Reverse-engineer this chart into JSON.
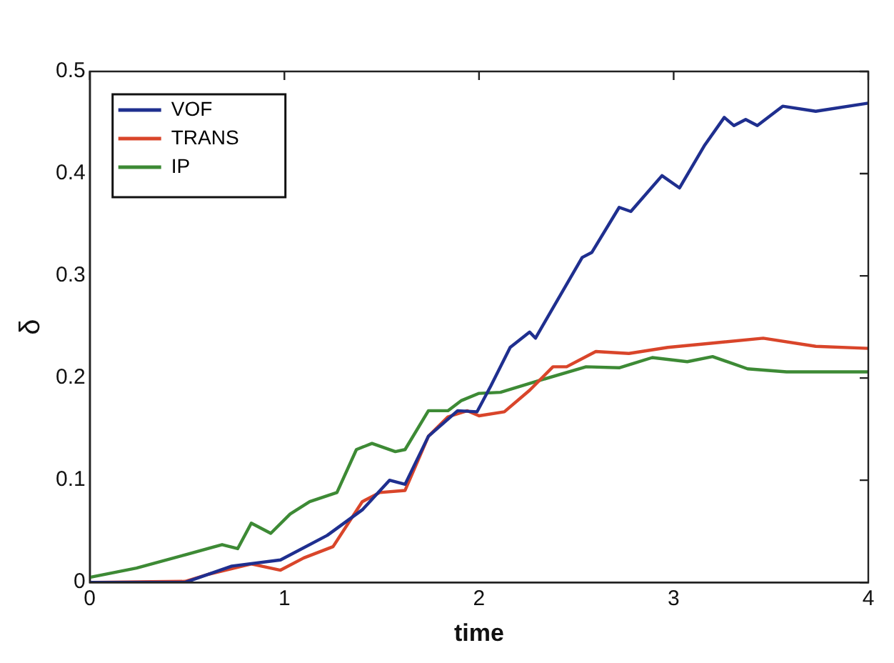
{
  "chart_data": {
    "type": "line",
    "xlabel": "time",
    "ylabel": "δ",
    "xlim": [
      0,
      4
    ],
    "xticks": [
      0,
      1,
      2,
      3,
      4
    ],
    "ylim": [
      0,
      0.5
    ],
    "yticks": [
      0,
      0.1,
      0.2,
      0.3,
      0.4,
      0.5
    ],
    "grid": false,
    "legend": "top left",
    "marker": "none",
    "line_style": "solid",
    "series": [
      {
        "name": "VOF",
        "color": "#1f2f8f",
        "x": [
          0,
          0.49,
          0.73,
          0.98,
          1.22,
          1.4,
          1.54,
          1.62,
          1.74,
          1.89,
          1.99,
          2.06,
          2.16,
          2.26,
          2.29,
          2.53,
          2.58,
          2.72,
          2.78,
          2.94,
          3.03,
          3.16,
          3.26,
          3.31,
          3.37,
          3.43,
          3.56,
          3.73,
          4.0
        ],
        "values": [
          0,
          0,
          0.016,
          0.022,
          0.046,
          0.071,
          0.1,
          0.096,
          0.143,
          0.168,
          0.167,
          0.192,
          0.23,
          0.245,
          0.239,
          0.318,
          0.323,
          0.367,
          0.363,
          0.398,
          0.386,
          0.428,
          0.455,
          0.447,
          0.453,
          0.447,
          0.466,
          0.461,
          0.469
        ]
      },
      {
        "name": "TRANS",
        "color": "#d9452a",
        "x": [
          0,
          0.49,
          0.61,
          0.83,
          0.98,
          1.1,
          1.25,
          1.4,
          1.49,
          1.62,
          1.74,
          1.84,
          1.94,
          2.0,
          2.13,
          2.26,
          2.38,
          2.45,
          2.6,
          2.77,
          2.97,
          3.19,
          3.46,
          3.73,
          4.0
        ],
        "values": [
          0,
          0.001,
          0.008,
          0.018,
          0.012,
          0.024,
          0.035,
          0.079,
          0.088,
          0.09,
          0.143,
          0.162,
          0.168,
          0.163,
          0.167,
          0.188,
          0.211,
          0.211,
          0.226,
          0.224,
          0.23,
          0.234,
          0.239,
          0.231,
          0.229
        ]
      },
      {
        "name": "IP",
        "color": "#3d8a35",
        "x": [
          0,
          0.24,
          0.49,
          0.68,
          0.76,
          0.83,
          0.93,
          1.03,
          1.13,
          1.27,
          1.37,
          1.45,
          1.57,
          1.62,
          1.74,
          1.84,
          1.91,
          2.0,
          2.11,
          2.3,
          2.55,
          2.72,
          2.89,
          3.07,
          3.2,
          3.38,
          3.58,
          4.0
        ],
        "values": [
          0.005,
          0.014,
          0.027,
          0.037,
          0.033,
          0.058,
          0.048,
          0.067,
          0.079,
          0.088,
          0.13,
          0.136,
          0.128,
          0.13,
          0.168,
          0.168,
          0.178,
          0.185,
          0.186,
          0.197,
          0.211,
          0.21,
          0.22,
          0.216,
          0.221,
          0.209,
          0.206,
          0.206
        ]
      }
    ]
  }
}
